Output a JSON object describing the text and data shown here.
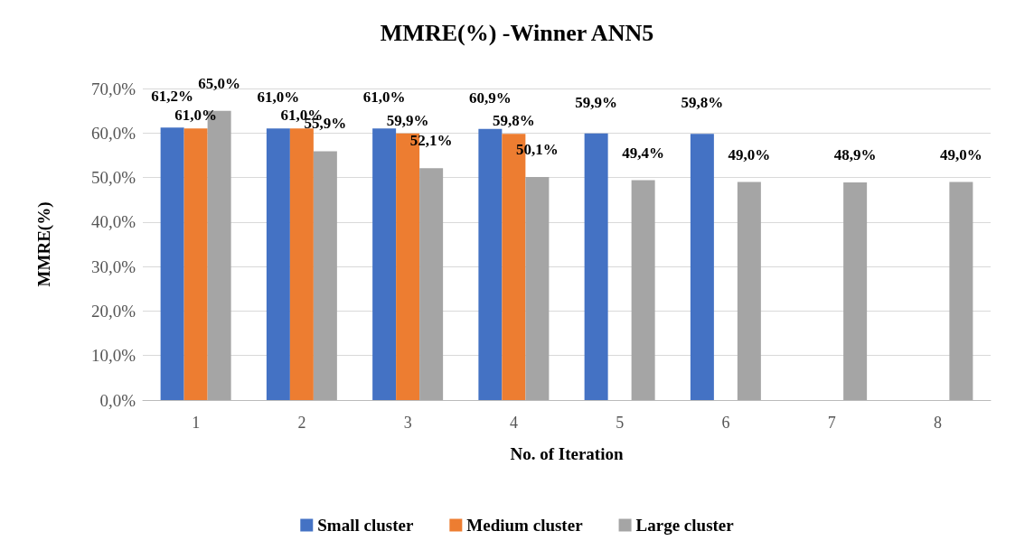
{
  "chart_data": {
    "type": "bar",
    "title": "MMRE(%) -Winner ANN5",
    "xlabel": "No. of Iteration",
    "ylabel": "MMRE(%)",
    "categories": [
      "1",
      "2",
      "3",
      "4",
      "5",
      "6",
      "7",
      "8"
    ],
    "series": [
      {
        "name": "Small cluster",
        "color": "#4472c4",
        "values": [
          61.2,
          61.0,
          61.0,
          60.9,
          59.9,
          59.8,
          null,
          null
        ],
        "value_labels": [
          "61,2%",
          "61,0%",
          "61,0%",
          "60,9%",
          "59,9%",
          "59,8%",
          null,
          null
        ]
      },
      {
        "name": "Medium cluster",
        "color": "#ed7d31",
        "values": [
          61.0,
          61.0,
          59.9,
          59.8,
          null,
          null,
          null,
          null
        ],
        "value_labels": [
          "61,0%",
          "61,0%",
          "59,9%",
          "59,8%",
          null,
          null,
          null,
          null
        ]
      },
      {
        "name": "Large cluster",
        "color": "#a5a5a5",
        "values": [
          65.0,
          55.9,
          52.1,
          50.1,
          49.4,
          49.0,
          48.9,
          49.0
        ],
        "value_labels": [
          "65,0%",
          "55,9%",
          "52,1%",
          "50,1%",
          "49,4%",
          "49,0%",
          "48,9%",
          "49,0%"
        ]
      }
    ],
    "ylim": [
      0,
      70
    ],
    "yticks": [
      {
        "value": 0,
        "label": "0,0%"
      },
      {
        "value": 10,
        "label": "10,0%"
      },
      {
        "value": 20,
        "label": "20,0%"
      },
      {
        "value": 30,
        "label": "30,0%"
      },
      {
        "value": 40,
        "label": "40,0%"
      },
      {
        "value": 50,
        "label": "50,0%"
      },
      {
        "value": 60,
        "label": "60,0%"
      },
      {
        "value": 70,
        "label": "70,0%"
      }
    ],
    "grid": "y",
    "legend": "bottom"
  }
}
